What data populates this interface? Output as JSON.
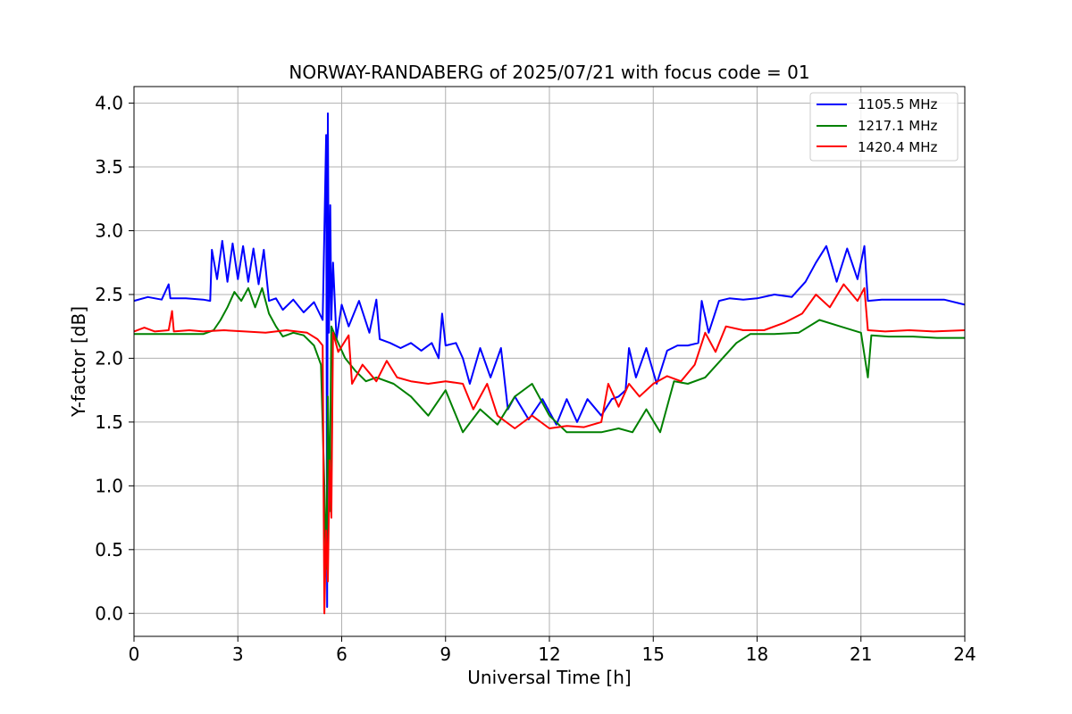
{
  "chart_data": {
    "type": "line",
    "title": "NORWAY-RANDABERG of 2025/07/21 with focus code = 01",
    "xlabel": "Universal Time [h]",
    "ylabel": "Y-factor [dB]",
    "xlim": [
      0,
      24
    ],
    "ylim": [
      -0.18,
      4.13
    ],
    "xticks": [
      0,
      3,
      6,
      9,
      12,
      15,
      18,
      21,
      24
    ],
    "yticks": [
      0.0,
      0.5,
      1.0,
      1.5,
      2.0,
      2.5,
      3.0,
      3.5,
      4.0
    ],
    "xtick_labels": [
      "0",
      "3",
      "6",
      "9",
      "12",
      "15",
      "18",
      "21",
      "24"
    ],
    "ytick_labels": [
      "0.0",
      "0.5",
      "1.0",
      "1.5",
      "2.0",
      "2.5",
      "3.0",
      "3.5",
      "4.0"
    ],
    "grid": true,
    "legend_position": "top-right",
    "series": [
      {
        "name": "1105.5 MHz",
        "color": "#0000ff",
        "points": [
          [
            0.0,
            2.45
          ],
          [
            0.4,
            2.48
          ],
          [
            0.8,
            2.46
          ],
          [
            1.0,
            2.58
          ],
          [
            1.05,
            2.47
          ],
          [
            1.5,
            2.47
          ],
          [
            2.0,
            2.46
          ],
          [
            2.2,
            2.45
          ],
          [
            2.25,
            2.85
          ],
          [
            2.4,
            2.62
          ],
          [
            2.55,
            2.92
          ],
          [
            2.7,
            2.6
          ],
          [
            2.85,
            2.9
          ],
          [
            3.0,
            2.62
          ],
          [
            3.15,
            2.88
          ],
          [
            3.3,
            2.6
          ],
          [
            3.45,
            2.86
          ],
          [
            3.6,
            2.58
          ],
          [
            3.75,
            2.85
          ],
          [
            3.9,
            2.45
          ],
          [
            4.1,
            2.47
          ],
          [
            4.3,
            2.38
          ],
          [
            4.6,
            2.46
          ],
          [
            4.9,
            2.36
          ],
          [
            5.2,
            2.44
          ],
          [
            5.45,
            2.3
          ],
          [
            5.5,
            3.0
          ],
          [
            5.55,
            3.75
          ],
          [
            5.58,
            0.05
          ],
          [
            5.6,
            3.92
          ],
          [
            5.63,
            2.2
          ],
          [
            5.67,
            3.2
          ],
          [
            5.7,
            2.3
          ],
          [
            5.75,
            2.75
          ],
          [
            5.85,
            2.15
          ],
          [
            6.0,
            2.42
          ],
          [
            6.2,
            2.25
          ],
          [
            6.5,
            2.45
          ],
          [
            6.8,
            2.2
          ],
          [
            7.0,
            2.46
          ],
          [
            7.1,
            2.15
          ],
          [
            7.4,
            2.12
          ],
          [
            7.7,
            2.08
          ],
          [
            8.0,
            2.12
          ],
          [
            8.3,
            2.06
          ],
          [
            8.6,
            2.12
          ],
          [
            8.8,
            2.0
          ],
          [
            8.9,
            2.35
          ],
          [
            9.0,
            2.1
          ],
          [
            9.3,
            2.12
          ],
          [
            9.5,
            2.0
          ],
          [
            9.7,
            1.8
          ],
          [
            10.0,
            2.08
          ],
          [
            10.3,
            1.85
          ],
          [
            10.6,
            2.08
          ],
          [
            10.8,
            1.6
          ],
          [
            11.0,
            1.7
          ],
          [
            11.4,
            1.52
          ],
          [
            11.8,
            1.68
          ],
          [
            12.2,
            1.48
          ],
          [
            12.5,
            1.68
          ],
          [
            12.8,
            1.5
          ],
          [
            13.1,
            1.68
          ],
          [
            13.5,
            1.55
          ],
          [
            13.8,
            1.68
          ],
          [
            14.0,
            1.7
          ],
          [
            14.2,
            1.75
          ],
          [
            14.3,
            2.08
          ],
          [
            14.5,
            1.85
          ],
          [
            14.8,
            2.08
          ],
          [
            15.1,
            1.8
          ],
          [
            15.4,
            2.06
          ],
          [
            15.7,
            2.1
          ],
          [
            16.0,
            2.1
          ],
          [
            16.3,
            2.12
          ],
          [
            16.4,
            2.45
          ],
          [
            16.6,
            2.2
          ],
          [
            16.9,
            2.45
          ],
          [
            17.2,
            2.47
          ],
          [
            17.6,
            2.46
          ],
          [
            18.0,
            2.47
          ],
          [
            18.5,
            2.5
          ],
          [
            19.0,
            2.48
          ],
          [
            19.4,
            2.6
          ],
          [
            19.7,
            2.75
          ],
          [
            20.0,
            2.88
          ],
          [
            20.3,
            2.6
          ],
          [
            20.6,
            2.86
          ],
          [
            20.9,
            2.62
          ],
          [
            21.1,
            2.88
          ],
          [
            21.2,
            2.45
          ],
          [
            21.6,
            2.46
          ],
          [
            22.2,
            2.46
          ],
          [
            22.8,
            2.46
          ],
          [
            23.4,
            2.46
          ],
          [
            24.0,
            2.42
          ]
        ]
      },
      {
        "name": "1217.1 MHz",
        "color": "#008000",
        "points": [
          [
            0.0,
            2.19
          ],
          [
            1.0,
            2.19
          ],
          [
            2.0,
            2.19
          ],
          [
            2.3,
            2.22
          ],
          [
            2.5,
            2.3
          ],
          [
            2.7,
            2.4
          ],
          [
            2.9,
            2.52
          ],
          [
            3.1,
            2.45
          ],
          [
            3.3,
            2.55
          ],
          [
            3.5,
            2.4
          ],
          [
            3.7,
            2.55
          ],
          [
            3.9,
            2.35
          ],
          [
            4.1,
            2.25
          ],
          [
            4.3,
            2.17
          ],
          [
            4.6,
            2.2
          ],
          [
            4.9,
            2.18
          ],
          [
            5.2,
            2.1
          ],
          [
            5.4,
            1.95
          ],
          [
            5.5,
            1.0
          ],
          [
            5.56,
            0.35
          ],
          [
            5.6,
            1.7
          ],
          [
            5.65,
            0.8
          ],
          [
            5.7,
            2.25
          ],
          [
            5.85,
            2.15
          ],
          [
            6.1,
            2.0
          ],
          [
            6.4,
            1.9
          ],
          [
            6.7,
            1.82
          ],
          [
            7.0,
            1.85
          ],
          [
            7.5,
            1.8
          ],
          [
            8.0,
            1.7
          ],
          [
            8.5,
            1.55
          ],
          [
            9.0,
            1.75
          ],
          [
            9.5,
            1.42
          ],
          [
            10.0,
            1.6
          ],
          [
            10.5,
            1.48
          ],
          [
            11.0,
            1.7
          ],
          [
            11.5,
            1.8
          ],
          [
            12.0,
            1.55
          ],
          [
            12.5,
            1.42
          ],
          [
            13.0,
            1.42
          ],
          [
            13.5,
            1.42
          ],
          [
            14.0,
            1.45
          ],
          [
            14.4,
            1.42
          ],
          [
            14.8,
            1.6
          ],
          [
            15.2,
            1.42
          ],
          [
            15.6,
            1.82
          ],
          [
            16.0,
            1.8
          ],
          [
            16.5,
            1.85
          ],
          [
            17.0,
            2.0
          ],
          [
            17.4,
            2.12
          ],
          [
            17.8,
            2.19
          ],
          [
            18.5,
            2.19
          ],
          [
            19.2,
            2.2
          ],
          [
            19.8,
            2.3
          ],
          [
            20.4,
            2.25
          ],
          [
            21.0,
            2.2
          ],
          [
            21.2,
            1.85
          ],
          [
            21.3,
            2.18
          ],
          [
            21.8,
            2.17
          ],
          [
            22.5,
            2.17
          ],
          [
            23.2,
            2.16
          ],
          [
            24.0,
            2.16
          ]
        ]
      },
      {
        "name": "1420.4 MHz",
        "color": "#ff0000",
        "points": [
          [
            0.0,
            2.21
          ],
          [
            0.3,
            2.24
          ],
          [
            0.6,
            2.21
          ],
          [
            1.0,
            2.22
          ],
          [
            1.1,
            2.37
          ],
          [
            1.15,
            2.21
          ],
          [
            1.6,
            2.22
          ],
          [
            2.0,
            2.21
          ],
          [
            2.6,
            2.22
          ],
          [
            3.2,
            2.21
          ],
          [
            3.8,
            2.2
          ],
          [
            4.4,
            2.22
          ],
          [
            5.0,
            2.2
          ],
          [
            5.3,
            2.15
          ],
          [
            5.45,
            2.1
          ],
          [
            5.5,
            0.0
          ],
          [
            5.55,
            0.65
          ],
          [
            5.6,
            0.25
          ],
          [
            5.65,
            1.2
          ],
          [
            5.7,
            0.75
          ],
          [
            5.75,
            2.2
          ],
          [
            5.9,
            2.05
          ],
          [
            6.2,
            2.18
          ],
          [
            6.3,
            1.8
          ],
          [
            6.6,
            1.95
          ],
          [
            7.0,
            1.82
          ],
          [
            7.3,
            1.98
          ],
          [
            7.6,
            1.85
          ],
          [
            8.0,
            1.82
          ],
          [
            8.5,
            1.8
          ],
          [
            9.0,
            1.82
          ],
          [
            9.5,
            1.8
          ],
          [
            9.8,
            1.6
          ],
          [
            10.2,
            1.8
          ],
          [
            10.5,
            1.55
          ],
          [
            11.0,
            1.45
          ],
          [
            11.5,
            1.55
          ],
          [
            12.0,
            1.45
          ],
          [
            12.5,
            1.47
          ],
          [
            13.0,
            1.46
          ],
          [
            13.5,
            1.5
          ],
          [
            13.7,
            1.8
          ],
          [
            14.0,
            1.62
          ],
          [
            14.3,
            1.8
          ],
          [
            14.6,
            1.7
          ],
          [
            15.0,
            1.8
          ],
          [
            15.4,
            1.86
          ],
          [
            15.8,
            1.82
          ],
          [
            16.2,
            1.95
          ],
          [
            16.5,
            2.2
          ],
          [
            16.8,
            2.05
          ],
          [
            17.1,
            2.25
          ],
          [
            17.6,
            2.22
          ],
          [
            18.2,
            2.22
          ],
          [
            18.8,
            2.28
          ],
          [
            19.3,
            2.35
          ],
          [
            19.7,
            2.5
          ],
          [
            20.1,
            2.4
          ],
          [
            20.5,
            2.58
          ],
          [
            20.9,
            2.45
          ],
          [
            21.1,
            2.55
          ],
          [
            21.2,
            2.22
          ],
          [
            21.7,
            2.21
          ],
          [
            22.4,
            2.22
          ],
          [
            23.1,
            2.21
          ],
          [
            24.0,
            2.22
          ]
        ]
      }
    ]
  }
}
